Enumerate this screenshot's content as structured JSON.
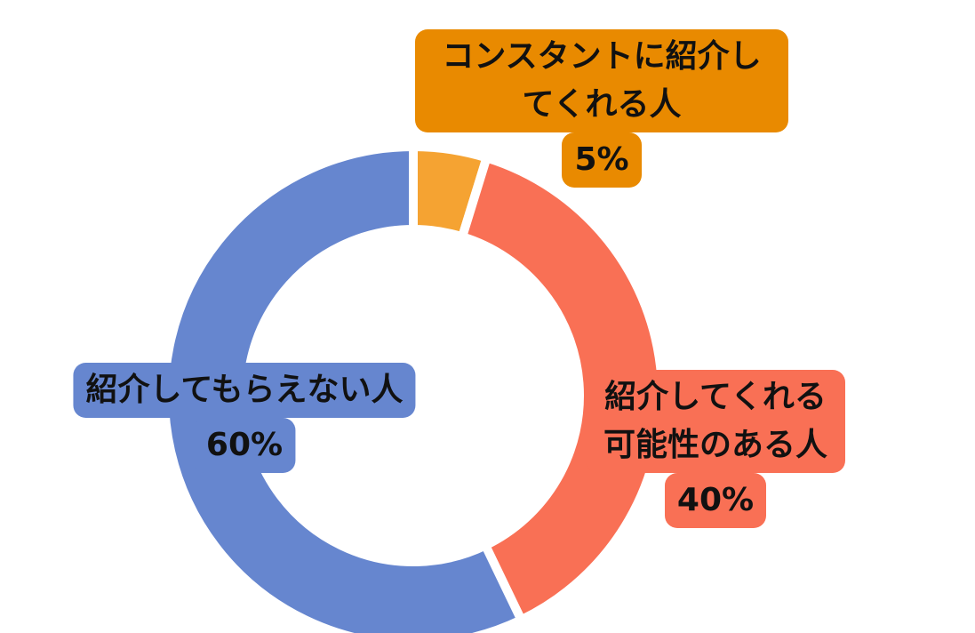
{
  "chart_data": {
    "type": "donut",
    "categories": [
      "コンスタントに紹介してくれる人",
      "紹介してくれる可能性のある人",
      "紹介してもらえない人"
    ],
    "values": [
      5,
      40,
      60
    ],
    "value_labels": [
      "5%",
      "40%",
      "60%"
    ],
    "colors": [
      "#f5a332",
      "#f97055",
      "#6686cf"
    ],
    "label_colors": [
      "#e98a00",
      "#f97055",
      "#6686cf"
    ]
  }
}
